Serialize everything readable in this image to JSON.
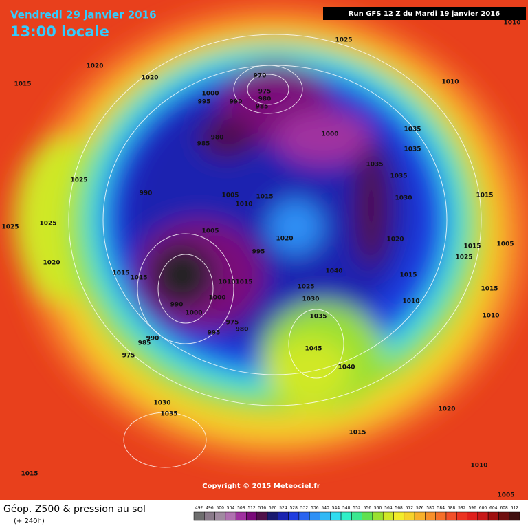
{
  "header": {
    "date": "Vendredi 29 janvier 2016",
    "time": "13:00 locale",
    "run": "Run GFS 12 Z du Mardi 19 janvier 2016"
  },
  "copyright": "Copyright © 2015 Meteociel.fr",
  "footer": {
    "title": "Géop. Z500 & pression au sol",
    "lead": "(+ 240h)"
  },
  "scale": {
    "values": [
      492,
      496,
      500,
      504,
      508,
      512,
      516,
      520,
      524,
      528,
      532,
      536,
      540,
      544,
      548,
      552,
      556,
      560,
      564,
      568,
      572,
      576,
      580,
      584,
      588,
      592,
      596,
      600,
      604,
      608,
      612
    ],
    "colors": [
      "#6e6e6e",
      "#8a7a8a",
      "#a08aa0",
      "#b070b0",
      "#a030a0",
      "#7a0a7a",
      "#50104a",
      "#1a1a70",
      "#1a24b0",
      "#1f3de0",
      "#2a64f0",
      "#2f90f5",
      "#30b8f5",
      "#30dcf0",
      "#30f0c8",
      "#3ce890",
      "#60e050",
      "#9ae030",
      "#d0e828",
      "#f2ec2a",
      "#f6d22a",
      "#f8b02a",
      "#f8902a",
      "#f6702a",
      "#f2502a",
      "#ec3422",
      "#e0201c",
      "#c81818",
      "#a01010",
      "#701010",
      "#401010"
    ]
  },
  "isobars": [
    1010,
    1025,
    1020,
    1015,
    1020,
    970,
    975,
    980,
    985,
    1000,
    995,
    990,
    980,
    985,
    1000,
    1010,
    1035,
    1035,
    1035,
    1035,
    1025,
    990,
    1005,
    1010,
    1015,
    1030,
    1015,
    1025,
    1025,
    1005,
    1020,
    995,
    1020,
    1015,
    1005,
    1025,
    1020,
    1015,
    1015,
    1040,
    1015,
    1010,
    1015,
    1025,
    1030,
    1000,
    1010,
    1015,
    990,
    1000,
    1035,
    1010,
    975,
    980,
    995,
    990,
    985,
    1045,
    975,
    1040,
    1030,
    1035,
    1020,
    1015,
    1015,
    1010,
    1005
  ]
}
